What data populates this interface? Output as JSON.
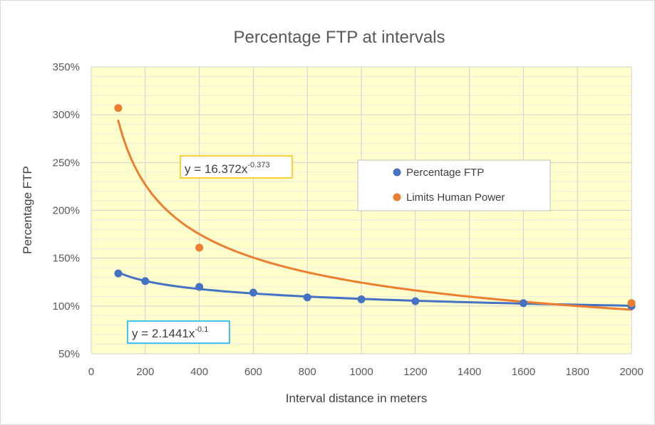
{
  "chart_data": {
    "type": "scatter",
    "title": "Percentage FTP at intervals",
    "xlabel": "Interval distance in meters",
    "ylabel": "Percentage FTP",
    "xlim": [
      0,
      2000
    ],
    "ylim": [
      50,
      350
    ],
    "x_ticks": [
      0,
      200,
      400,
      600,
      800,
      1000,
      1200,
      1400,
      1600,
      1800,
      2000
    ],
    "y_ticks": [
      50,
      100,
      150,
      200,
      250,
      300,
      350
    ],
    "y_tick_labels": [
      "50%",
      "100%",
      "150%",
      "200%",
      "250%",
      "300%",
      "350%"
    ],
    "grid": true,
    "plot_background": "#ffffcc",
    "legend_position": "right",
    "series": [
      {
        "name": "Percentage FTP",
        "color": "#4472c4",
        "x": [
          100,
          200,
          400,
          600,
          800,
          1000,
          1200,
          1600,
          2000
        ],
        "y": [
          134,
          126,
          120,
          114,
          109,
          107,
          105,
          103,
          100
        ],
        "trendline": {
          "type": "power",
          "a": 2.1441,
          "b": -0.1,
          "equation": {
            "prefix": "y = 2.1441x",
            "exponent": "-0.1"
          },
          "label_border": "#00b0f0"
        }
      },
      {
        "name": "Limits Human Power",
        "color": "#ed7d31",
        "x": [
          100,
          400,
          2000
        ],
        "y": [
          307,
          161,
          103
        ],
        "trendline": {
          "type": "power",
          "a": 16.372,
          "b": -0.373,
          "equation": {
            "prefix": "y = 16.372x",
            "exponent": "-0.373"
          },
          "label_border": "#ffc000"
        }
      }
    ]
  }
}
